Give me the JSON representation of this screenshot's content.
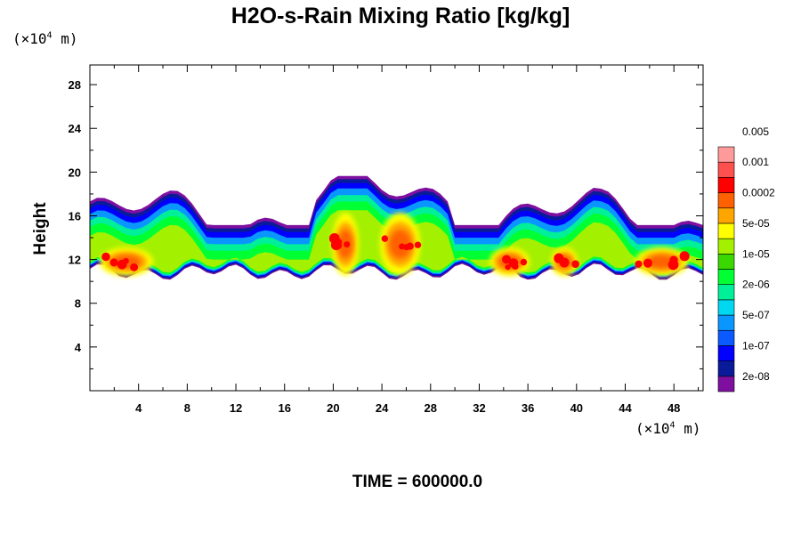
{
  "chart_data": {
    "type": "heatmap",
    "title": "H2O-s-Rain Mixing Ratio [kg/kg]",
    "ylabel": "Height",
    "x_unit": {
      "prefix": "(×10",
      "exp": "4",
      "suffix": " m)"
    },
    "y_unit": {
      "prefix": "(×10",
      "exp": "4",
      "suffix": " m)"
    },
    "xlim": [
      0,
      50.4
    ],
    "ylim": [
      0,
      29.8
    ],
    "x_ticks": [
      4,
      8,
      12,
      16,
      20,
      24,
      28,
      32,
      36,
      40,
      44,
      48
    ],
    "y_ticks": [
      4,
      8,
      12,
      16,
      20,
      24,
      28
    ],
    "footer": "TIME = 600000.0",
    "colorbar": {
      "colors": [
        "#7f0f9f",
        "#0a1b9a",
        "#0000ff",
        "#0a5aff",
        "#0a96ff",
        "#00d7f0",
        "#00f09a",
        "#00ff33",
        "#3ad800",
        "#a3f000",
        "#ffff00",
        "#ffa500",
        "#ff6000",
        "#ff0000",
        "#ff5050",
        "#ff9a9a"
      ],
      "labels": [
        "2e-08",
        "1e-07",
        "5e-07",
        "2e-06",
        "1e-05",
        "5e-05",
        "0.0002",
        "0.001",
        "0.005"
      ]
    },
    "cloud_band": {
      "x_extent": [
        0,
        50.4
      ],
      "base_height_range": [
        10.2,
        12
      ],
      "top_height_range": [
        15,
        19.5
      ],
      "max_value": "0.005",
      "max_regions_x": [
        [
          1,
          5
        ],
        [
          20,
          22
        ],
        [
          24,
          27
        ],
        [
          33,
          36
        ],
        [
          38,
          40
        ],
        [
          45,
          49
        ]
      ]
    }
  }
}
